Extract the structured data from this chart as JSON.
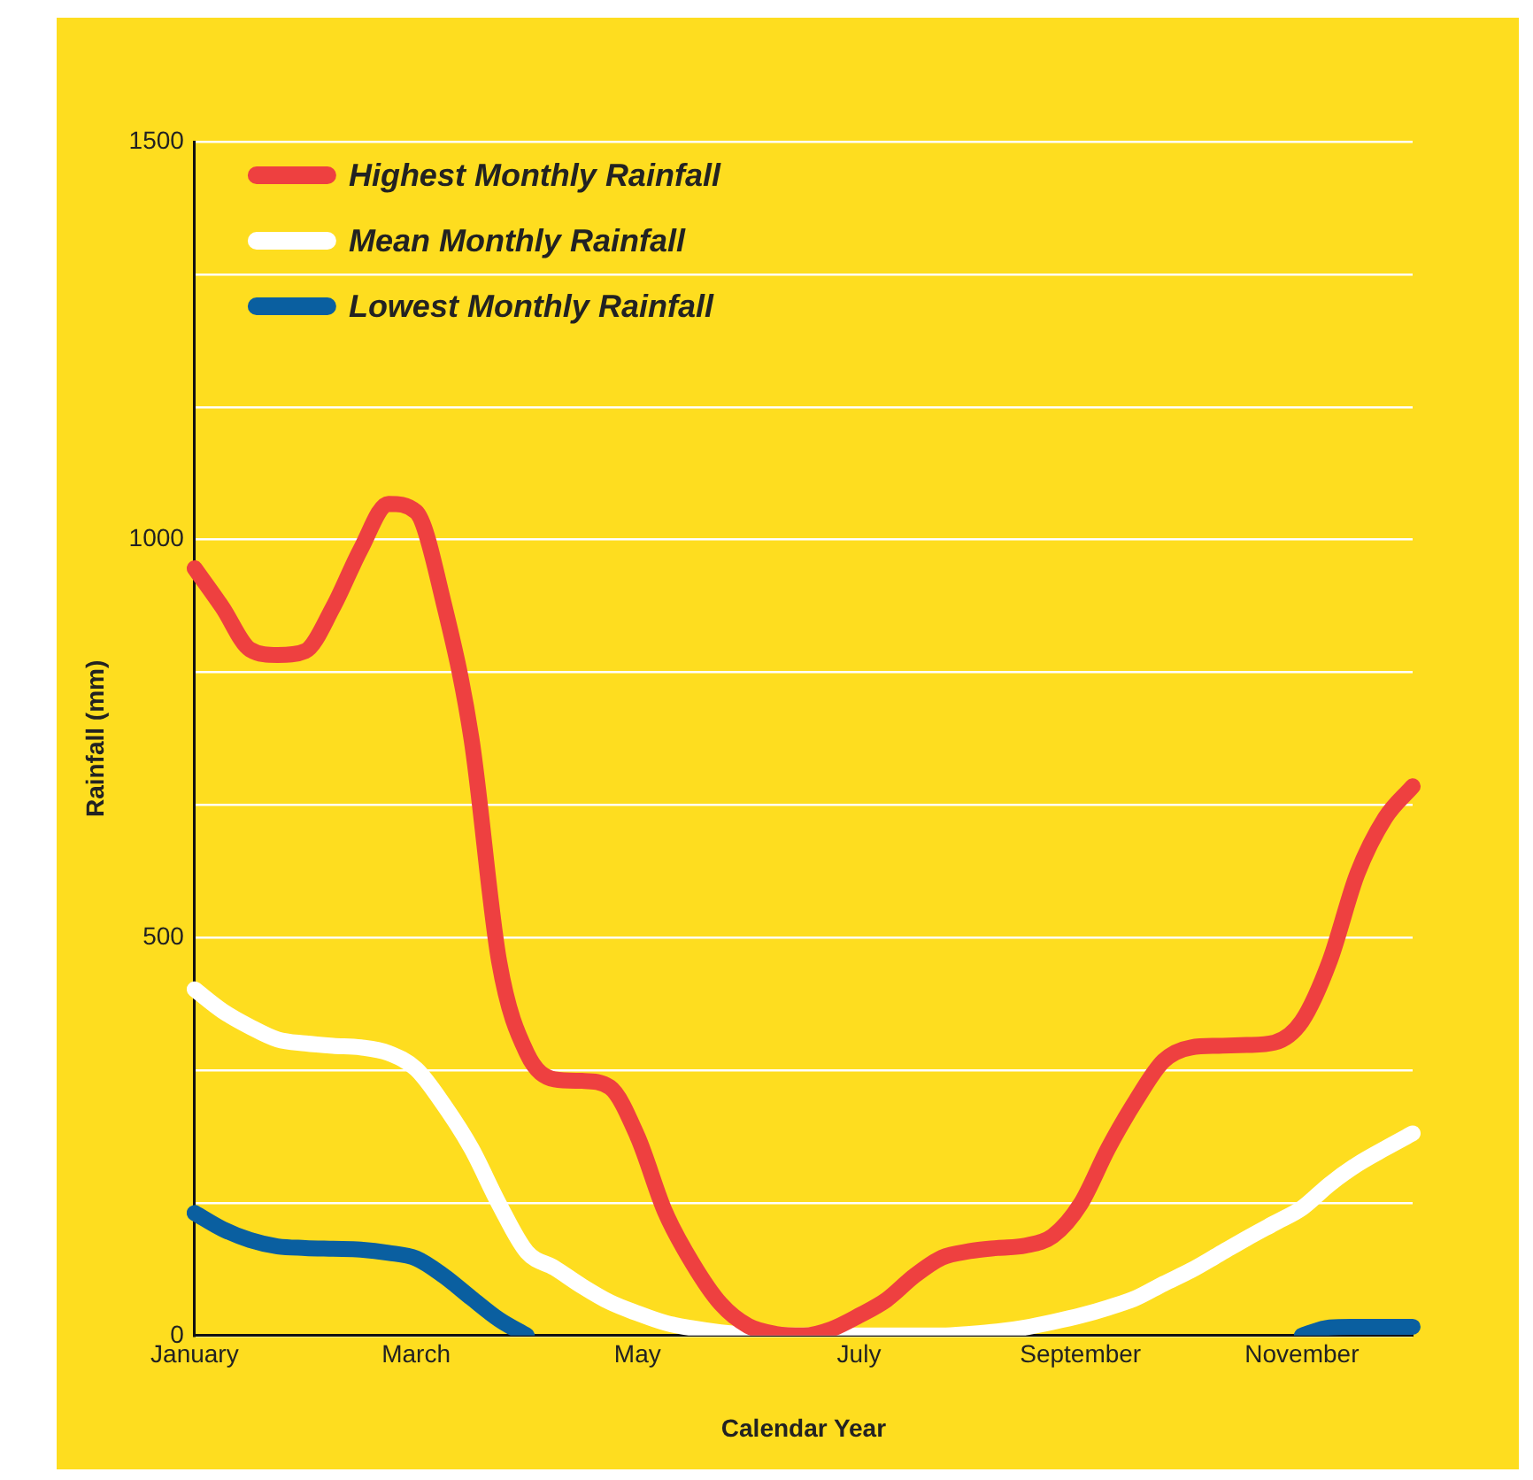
{
  "chart_data": {
    "type": "line",
    "xlabel": "Calendar Year",
    "ylabel": "Rainfall (mm)",
    "categories": [
      "January",
      null,
      null,
      null,
      null,
      null,
      null,
      null,
      "March",
      null,
      null,
      null,
      null,
      null,
      null,
      null,
      "May",
      null,
      null,
      null,
      null,
      null,
      null,
      null,
      "July",
      null,
      null,
      null,
      null,
      null,
      null,
      null,
      "September",
      null,
      null,
      null,
      null,
      null,
      null,
      null,
      "November",
      null,
      null,
      null,
      null
    ],
    "ylim": [
      0,
      1500
    ],
    "yticks": [
      0,
      {
        "value": 166.7,
        "label": null
      },
      {
        "value": 333.3,
        "label": null
      },
      500,
      {
        "value": 666.7,
        "label": null
      },
      {
        "value": 833.3,
        "label": null
      },
      1000,
      {
        "value": 1166.7,
        "label": null
      },
      {
        "value": 1333.3,
        "label": null
      },
      1500
    ],
    "grid": "y",
    "legend": "top left",
    "marker": "none",
    "line_style": "solid",
    "series": [
      {
        "name": "Highest Monthly Rainfall",
        "color": "#ee4040",
        "values": [
          964,
          915,
          862,
          855,
          860,
          915,
          988,
          1045,
          1035,
          920,
          750,
          470,
          355,
          322,
          320,
          312,
          250,
          155,
          90,
          40,
          12,
          2,
          0,
          8,
          25,
          45,
          75,
          98,
          106,
          110,
          113,
          125,
          165,
          235,
          295,
          345,
          362,
          364,
          365,
          368,
          395,
          470,
          580,
          650,
          690
        ]
      },
      {
        "name": "Mean Monthly Rainfall",
        "color": "#ffffff",
        "values": [
          435,
          408,
          388,
          372,
          367,
          364,
          362,
          355,
          335,
          290,
          235,
          165,
          105,
          85,
          62,
          42,
          28,
          16,
          9,
          4,
          1,
          0,
          0,
          0,
          0,
          0,
          0,
          0,
          2,
          5,
          10,
          17,
          25,
          35,
          47,
          65,
          82,
          102,
          122,
          141,
          160,
          190,
          215,
          235,
          254
        ]
      },
      {
        "name": "Lowest Monthly Rainfall",
        "color": "#0a5fa0",
        "values": [
          154,
          134,
          120,
          112,
          110,
          109,
          108,
          104,
          97,
          75,
          47,
          20,
          0,
          null,
          null,
          null,
          null,
          null,
          null,
          null,
          null,
          null,
          null,
          null,
          null,
          null,
          null,
          null,
          null,
          null,
          null,
          null,
          null,
          null,
          null,
          null,
          null,
          null,
          null,
          null,
          0,
          10,
          11,
          11,
          11
        ]
      }
    ]
  }
}
